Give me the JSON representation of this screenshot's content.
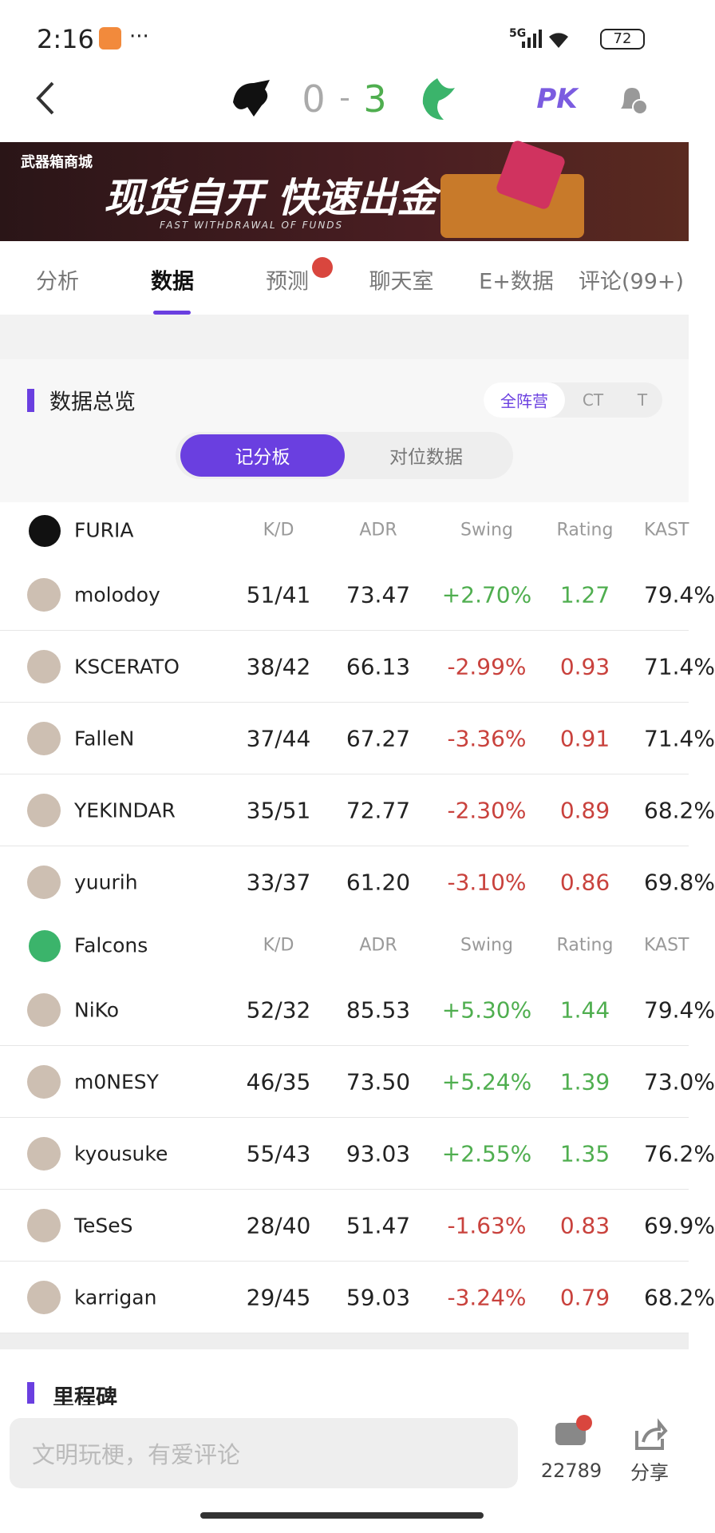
{
  "status_bar": {
    "time": "2:16",
    "network": "5G",
    "battery": "72"
  },
  "header": {
    "home_score": "0",
    "separator": "-",
    "away_score": "3",
    "pk": "PK"
  },
  "banner": {
    "shop": "武器箱商城",
    "headline": "现货自开 快速出金",
    "subline": "FAST WITHDRAWAL OF FUNDS"
  },
  "tabs": [
    "分析",
    "数据",
    "预测",
    "聊天室",
    "E+数据",
    "评论(99+)"
  ],
  "overview": {
    "title": "数据总览",
    "sides": [
      "全阵营",
      "CT",
      "T"
    ],
    "views": [
      "记分板",
      "对位数据"
    ]
  },
  "teams": [
    {
      "name": "FURIA",
      "columns": [
        "K/D",
        "ADR",
        "Swing",
        "Rating",
        "KAST"
      ],
      "players": [
        {
          "name": "molodoy",
          "kd": "51/41",
          "adr": "73.47",
          "swing": "+2.70%",
          "rating": "1.27",
          "kast": "79.4%"
        },
        {
          "name": "KSCERATO",
          "kd": "38/42",
          "adr": "66.13",
          "swing": "-2.99%",
          "rating": "0.93",
          "kast": "71.4%"
        },
        {
          "name": "FalleN",
          "kd": "37/44",
          "adr": "67.27",
          "swing": "-3.36%",
          "rating": "0.91",
          "kast": "71.4%"
        },
        {
          "name": "YEKINDAR",
          "kd": "35/51",
          "adr": "72.77",
          "swing": "-2.30%",
          "rating": "0.89",
          "kast": "68.2%"
        },
        {
          "name": "yuurih",
          "kd": "33/37",
          "adr": "61.20",
          "swing": "-3.10%",
          "rating": "0.86",
          "kast": "69.8%"
        }
      ]
    },
    {
      "name": "Falcons",
      "columns": [
        "K/D",
        "ADR",
        "Swing",
        "Rating",
        "KAST"
      ],
      "players": [
        {
          "name": "NiKo",
          "kd": "52/32",
          "adr": "85.53",
          "swing": "+5.30%",
          "rating": "1.44",
          "kast": "79.4%"
        },
        {
          "name": "m0NESY",
          "kd": "46/35",
          "adr": "73.50",
          "swing": "+5.24%",
          "rating": "1.39",
          "kast": "73.0%"
        },
        {
          "name": "kyousuke",
          "kd": "55/43",
          "adr": "93.03",
          "swing": "+2.55%",
          "rating": "1.35",
          "kast": "76.2%"
        },
        {
          "name": "TeSeS",
          "kd": "28/40",
          "adr": "51.47",
          "swing": "-1.63%",
          "rating": "0.83",
          "kast": "69.9%"
        },
        {
          "name": "karrigan",
          "kd": "29/45",
          "adr": "59.03",
          "swing": "-3.24%",
          "rating": "0.79",
          "kast": "68.2%"
        }
      ]
    }
  ],
  "milestone": {
    "title": "里程碑"
  },
  "footer": {
    "placeholder": "文明玩梗，有爱评论",
    "comments": "22789",
    "share": "分享"
  }
}
